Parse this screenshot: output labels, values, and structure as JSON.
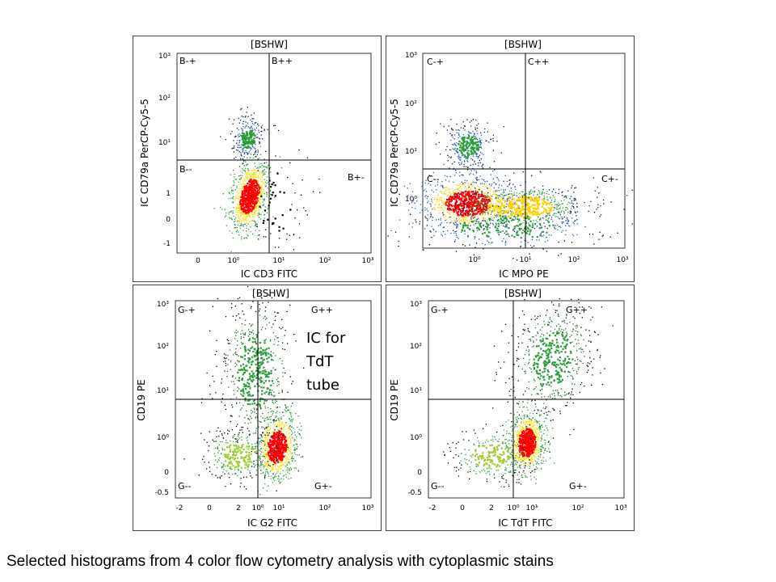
{
  "caption": "Selected histograms from 4 color flow cytometry analysis with cytoplasmic stains",
  "chart_data": [
    {
      "type": "scatter",
      "title": "[BSHW]",
      "xlabel": "IC CD3 FITC",
      "ylabel": "IC CD79a PerCP-Cy5-5",
      "x_ticks": [
        "0",
        "10⁰",
        "10¹",
        "10²",
        "10³"
      ],
      "y_ticks": [
        "10³",
        "10²",
        "10¹",
        "1",
        "0",
        "-1"
      ],
      "quadrants": {
        "upper_left": "B-+",
        "upper_right": "B++",
        "lower_left": "B--",
        "lower_right": "B+-"
      },
      "quadrant_gate": {
        "x": 5,
        "y": 4
      },
      "populations": [
        {
          "x": 2,
          "y": 1,
          "note": "dense red main cluster, lower-left"
        },
        {
          "x": 2,
          "y": 15,
          "note": "smaller cluster, upper-left"
        }
      ]
    },
    {
      "type": "scatter",
      "title": "[BSHW]",
      "xlabel": "IC MPO PE",
      "ylabel": "IC CD79a PerCP-Cy5-5",
      "x_ticks": [
        "10⁰",
        "10¹",
        "10²",
        "10³"
      ],
      "y_ticks": [
        "10³",
        "10²",
        "10¹",
        "10⁰"
      ],
      "quadrants": {
        "upper_left": "C-+",
        "upper_right": "C++",
        "lower_left": "C--",
        "lower_right": "C+-"
      },
      "quadrant_gate": {
        "x": 10,
        "y": 4
      },
      "populations": [
        {
          "x": 0.8,
          "y": 0.8,
          "note": "dense red main cluster, spreads to the right"
        },
        {
          "x": 0.5,
          "y": 10,
          "note": "smaller cluster, upper-left"
        }
      ]
    },
    {
      "type": "scatter",
      "title": "[BSHW]",
      "xlabel": "IC G2 FITC",
      "ylabel": "CD19 PE",
      "x_ticks": [
        "-2",
        "0",
        "2",
        "10⁰",
        "10¹",
        "10²",
        "10³"
      ],
      "y_ticks": [
        "10³",
        "10²",
        "10¹",
        "10⁰",
        "0",
        "-0.5"
      ],
      "quadrants": {
        "upper_left": "G-+",
        "upper_right": "G++",
        "lower_left": "G--",
        "lower_right": "G+-"
      },
      "quadrant_gate": {
        "x": 3,
        "y": 6
      },
      "annotation": "IC for\nTdT\ntube",
      "populations": [
        {
          "x": 8,
          "y": 0.6,
          "note": "dense red main cluster, lower-right"
        },
        {
          "x": 3,
          "y": 30,
          "note": "diffuse green column rising from cluster"
        }
      ]
    },
    {
      "type": "scatter",
      "title": "[BSHW]",
      "xlabel": "IC TdT FITC",
      "ylabel": "CD19 PE",
      "x_ticks": [
        "-2",
        "0",
        "2",
        "10⁰",
        "10¹",
        "10²",
        "10³"
      ],
      "y_ticks": [
        "10³",
        "10²",
        "10¹",
        "10⁰",
        "0",
        "-0.5"
      ],
      "quadrants": {
        "upper_left": "G-+",
        "upper_right": "G++",
        "lower_left": "G--",
        "lower_right": "G+-"
      },
      "quadrant_gate": {
        "x": 3,
        "y": 6
      },
      "populations": [
        {
          "x": 8,
          "y": 0.5,
          "note": "dense red main cluster, lower-right"
        },
        {
          "x": 30,
          "y": 40,
          "note": "diffuse green cloud, upper-right"
        }
      ]
    }
  ]
}
